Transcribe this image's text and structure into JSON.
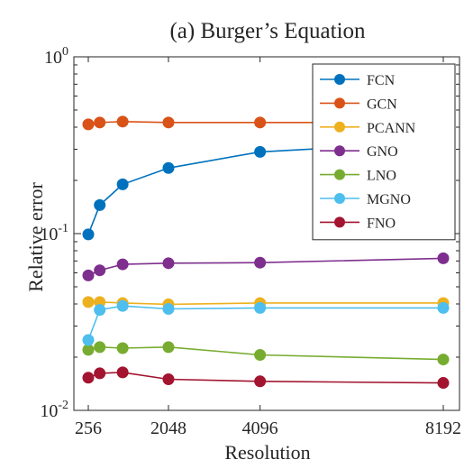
{
  "chart_data": {
    "type": "line",
    "title": "(a) Burger’s Equation",
    "xlabel": "Resolution",
    "ylabel": "Relative error",
    "yscale": "log",
    "xlim": [
      256,
      8192
    ],
    "ylim": [
      0.01,
      1
    ],
    "grid": false,
    "legend_position": "top-right",
    "x_ticks": [
      {
        "value": 256,
        "label": "256"
      },
      {
        "value": 2048,
        "label": "2048"
      },
      {
        "value": 4096,
        "label": "4096"
      },
      {
        "value": 8192,
        "label": "8192"
      }
    ],
    "y_ticks": [
      {
        "value": 0.01,
        "base": "10",
        "exp": "-2"
      },
      {
        "value": 0.1,
        "base": "10",
        "exp": "-1"
      },
      {
        "value": 1,
        "base": "10",
        "exp": "0"
      }
    ],
    "x": [
      256,
      512,
      1024,
      2048,
      4096,
      8192
    ],
    "series": [
      {
        "name": "FCN",
        "color": "#0072BD",
        "values": [
          0.099,
          0.145,
          0.19,
          0.235,
          0.29,
          0.33
        ]
      },
      {
        "name": "GCN",
        "color": "#D95319",
        "values": [
          0.415,
          0.425,
          0.43,
          0.425,
          0.425,
          0.425
        ]
      },
      {
        "name": "PCANN",
        "color": "#EDB120",
        "values": [
          0.041,
          0.041,
          0.0405,
          0.0398,
          0.0405,
          0.0405
        ]
      },
      {
        "name": "GNO",
        "color": "#7E2F8E",
        "values": [
          0.058,
          0.062,
          0.067,
          0.068,
          0.0685,
          0.0725
        ]
      },
      {
        "name": "LNO",
        "color": "#77AC30",
        "values": [
          0.022,
          0.0228,
          0.0225,
          0.0228,
          0.0206,
          0.0194
        ]
      },
      {
        "name": "MGNO",
        "color": "#4DBEEE",
        "values": [
          0.025,
          0.037,
          0.039,
          0.0375,
          0.038,
          0.038
        ]
      },
      {
        "name": "FNO",
        "color": "#A2142F",
        "values": [
          0.0153,
          0.0162,
          0.0164,
          0.015,
          0.0146,
          0.0143
        ]
      }
    ]
  }
}
